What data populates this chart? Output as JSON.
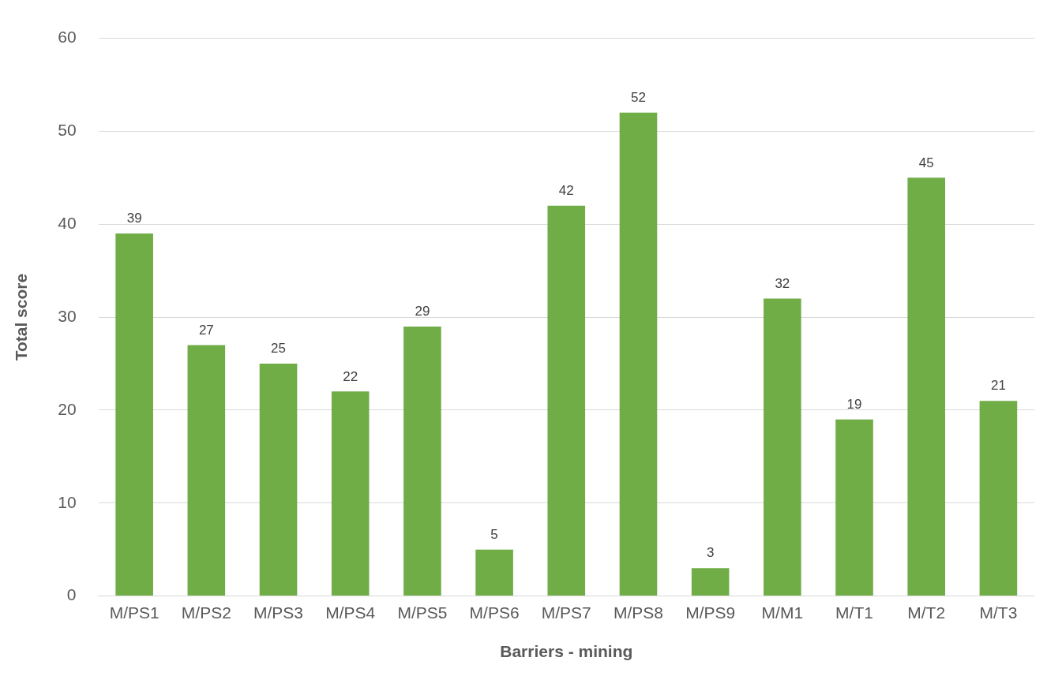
{
  "chart_data": {
    "type": "bar",
    "xlabel": "Barriers - mining",
    "ylabel": "Total score",
    "categories": [
      "M/PS1",
      "M/PS2",
      "M/PS3",
      "M/PS4",
      "M/PS5",
      "M/PS6",
      "M/PS7",
      "M/PS8",
      "M/PS9",
      "M/M1",
      "M/T1",
      "M/T2",
      "M/T3"
    ],
    "values": [
      39,
      27,
      25,
      22,
      29,
      5,
      42,
      52,
      3,
      32,
      19,
      45,
      21
    ],
    "color": "#70ad47",
    "ylim": [
      0,
      60
    ],
    "yticks": [
      0,
      10,
      20,
      30,
      40,
      50,
      60
    ],
    "grid": "y",
    "data_labels": true,
    "legend": false
  }
}
